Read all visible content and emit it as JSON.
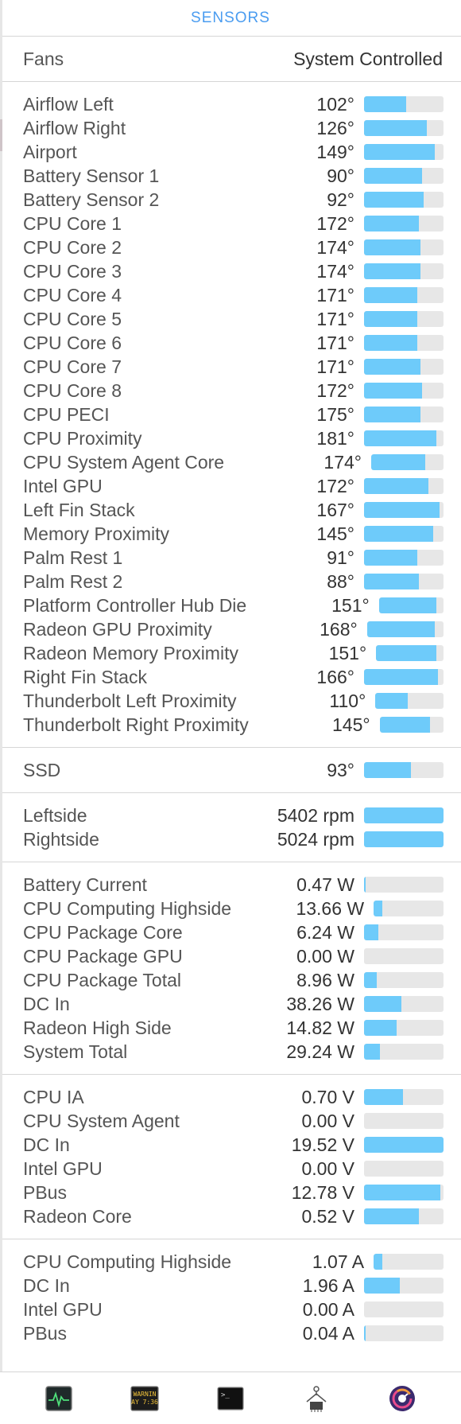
{
  "header": {
    "title": "SENSORS"
  },
  "fans": {
    "label": "Fans",
    "value": "System Controlled"
  },
  "accent_color": "#6ecbfa",
  "sections": [
    {
      "name": "temperatures",
      "rows": [
        {
          "label": "Airflow Left",
          "value": "102°",
          "level": 0.53
        },
        {
          "label": "Airflow Right",
          "value": "126°",
          "level": 0.79
        },
        {
          "label": "Airport",
          "value": "149°",
          "level": 0.89
        },
        {
          "label": "Battery Sensor 1",
          "value": "90°",
          "level": 0.73
        },
        {
          "label": "Battery Sensor 2",
          "value": "92°",
          "level": 0.75
        },
        {
          "label": "CPU Core 1",
          "value": "172°",
          "level": 0.69
        },
        {
          "label": "CPU Core 2",
          "value": "174°",
          "level": 0.71
        },
        {
          "label": "CPU Core 3",
          "value": "174°",
          "level": 0.71
        },
        {
          "label": "CPU Core 4",
          "value": "171°",
          "level": 0.67
        },
        {
          "label": "CPU Core 5",
          "value": "171°",
          "level": 0.67
        },
        {
          "label": "CPU Core 6",
          "value": "171°",
          "level": 0.67
        },
        {
          "label": "CPU Core 7",
          "value": "171°",
          "level": 0.71
        },
        {
          "label": "CPU Core 8",
          "value": "172°",
          "level": 0.73
        },
        {
          "label": "CPU PECI",
          "value": "175°",
          "level": 0.71
        },
        {
          "label": "CPU Proximity",
          "value": "181°",
          "level": 0.91
        },
        {
          "label": "CPU System Agent Core",
          "value": "174°",
          "level": 0.75
        },
        {
          "label": "Intel GPU",
          "value": "172°",
          "level": 0.81
        },
        {
          "label": "Left Fin Stack",
          "value": "167°",
          "level": 0.95
        },
        {
          "label": "Memory Proximity",
          "value": "145°",
          "level": 0.87
        },
        {
          "label": "Palm Rest 1",
          "value": "91°",
          "level": 0.67
        },
        {
          "label": "Palm Rest 2",
          "value": "88°",
          "level": 0.69
        },
        {
          "label": "Platform Controller Hub Die",
          "value": "151°",
          "level": 0.89
        },
        {
          "label": "Radeon GPU Proximity",
          "value": "168°",
          "level": 0.89
        },
        {
          "label": "Radeon Memory Proximity",
          "value": "151°",
          "level": 0.89
        },
        {
          "label": "Right Fin Stack",
          "value": "166°",
          "level": 0.93
        },
        {
          "label": "Thunderbolt Left Proximity",
          "value": "110°",
          "level": 0.47
        },
        {
          "label": "Thunderbolt Right Proximity",
          "value": "145°",
          "level": 0.79
        }
      ]
    },
    {
      "name": "disks",
      "rows": [
        {
          "label": "SSD",
          "value": "93°",
          "level": 0.59
        }
      ]
    },
    {
      "name": "fan-speeds",
      "rows": [
        {
          "label": "Leftside",
          "value": "5402 rpm",
          "level": 1.0
        },
        {
          "label": "Rightside",
          "value": "5024 rpm",
          "level": 1.0
        }
      ]
    },
    {
      "name": "power",
      "rows": [
        {
          "label": "Battery Current",
          "value": "0.47 W",
          "level": 0.02
        },
        {
          "label": "CPU Computing Highside",
          "value": "13.66 W",
          "level": 0.12
        },
        {
          "label": "CPU Package Core",
          "value": "6.24 W",
          "level": 0.18
        },
        {
          "label": "CPU Package GPU",
          "value": "0.00 W",
          "level": 0.0
        },
        {
          "label": "CPU Package Total",
          "value": "8.96 W",
          "level": 0.16
        },
        {
          "label": "DC In",
          "value": "38.26 W",
          "level": 0.47
        },
        {
          "label": "Radeon High Side",
          "value": "14.82 W",
          "level": 0.41
        },
        {
          "label": "System Total",
          "value": "29.24 W",
          "level": 0.2
        }
      ]
    },
    {
      "name": "voltages",
      "rows": [
        {
          "label": "CPU IA",
          "value": "0.70 V",
          "level": 0.49
        },
        {
          "label": "CPU System Agent",
          "value": "0.00 V",
          "level": 0.0
        },
        {
          "label": "DC In",
          "value": "19.52 V",
          "level": 1.0
        },
        {
          "label": "Intel GPU",
          "value": "0.00 V",
          "level": 0.0
        },
        {
          "label": "PBus",
          "value": "12.78 V",
          "level": 0.96
        },
        {
          "label": "Radeon Core",
          "value": "0.52 V",
          "level": 0.69
        }
      ]
    },
    {
      "name": "currents",
      "rows": [
        {
          "label": "CPU Computing Highside",
          "value": "1.07 A",
          "level": 0.12
        },
        {
          "label": "DC In",
          "value": "1.96 A",
          "level": 0.45
        },
        {
          "label": "Intel GPU",
          "value": "0.00 A",
          "level": 0.0
        },
        {
          "label": "PBus",
          "value": "0.04 A",
          "level": 0.02
        }
      ]
    }
  ],
  "dock": {
    "icons": [
      {
        "name": "activity-monitor-icon"
      },
      {
        "name": "console-icon",
        "text_line1": "WARNIN",
        "text_line2": "AY 7:36"
      },
      {
        "name": "terminal-icon",
        "prompt": ">_"
      },
      {
        "name": "system-information-icon"
      },
      {
        "name": "istat-menus-icon"
      }
    ]
  }
}
